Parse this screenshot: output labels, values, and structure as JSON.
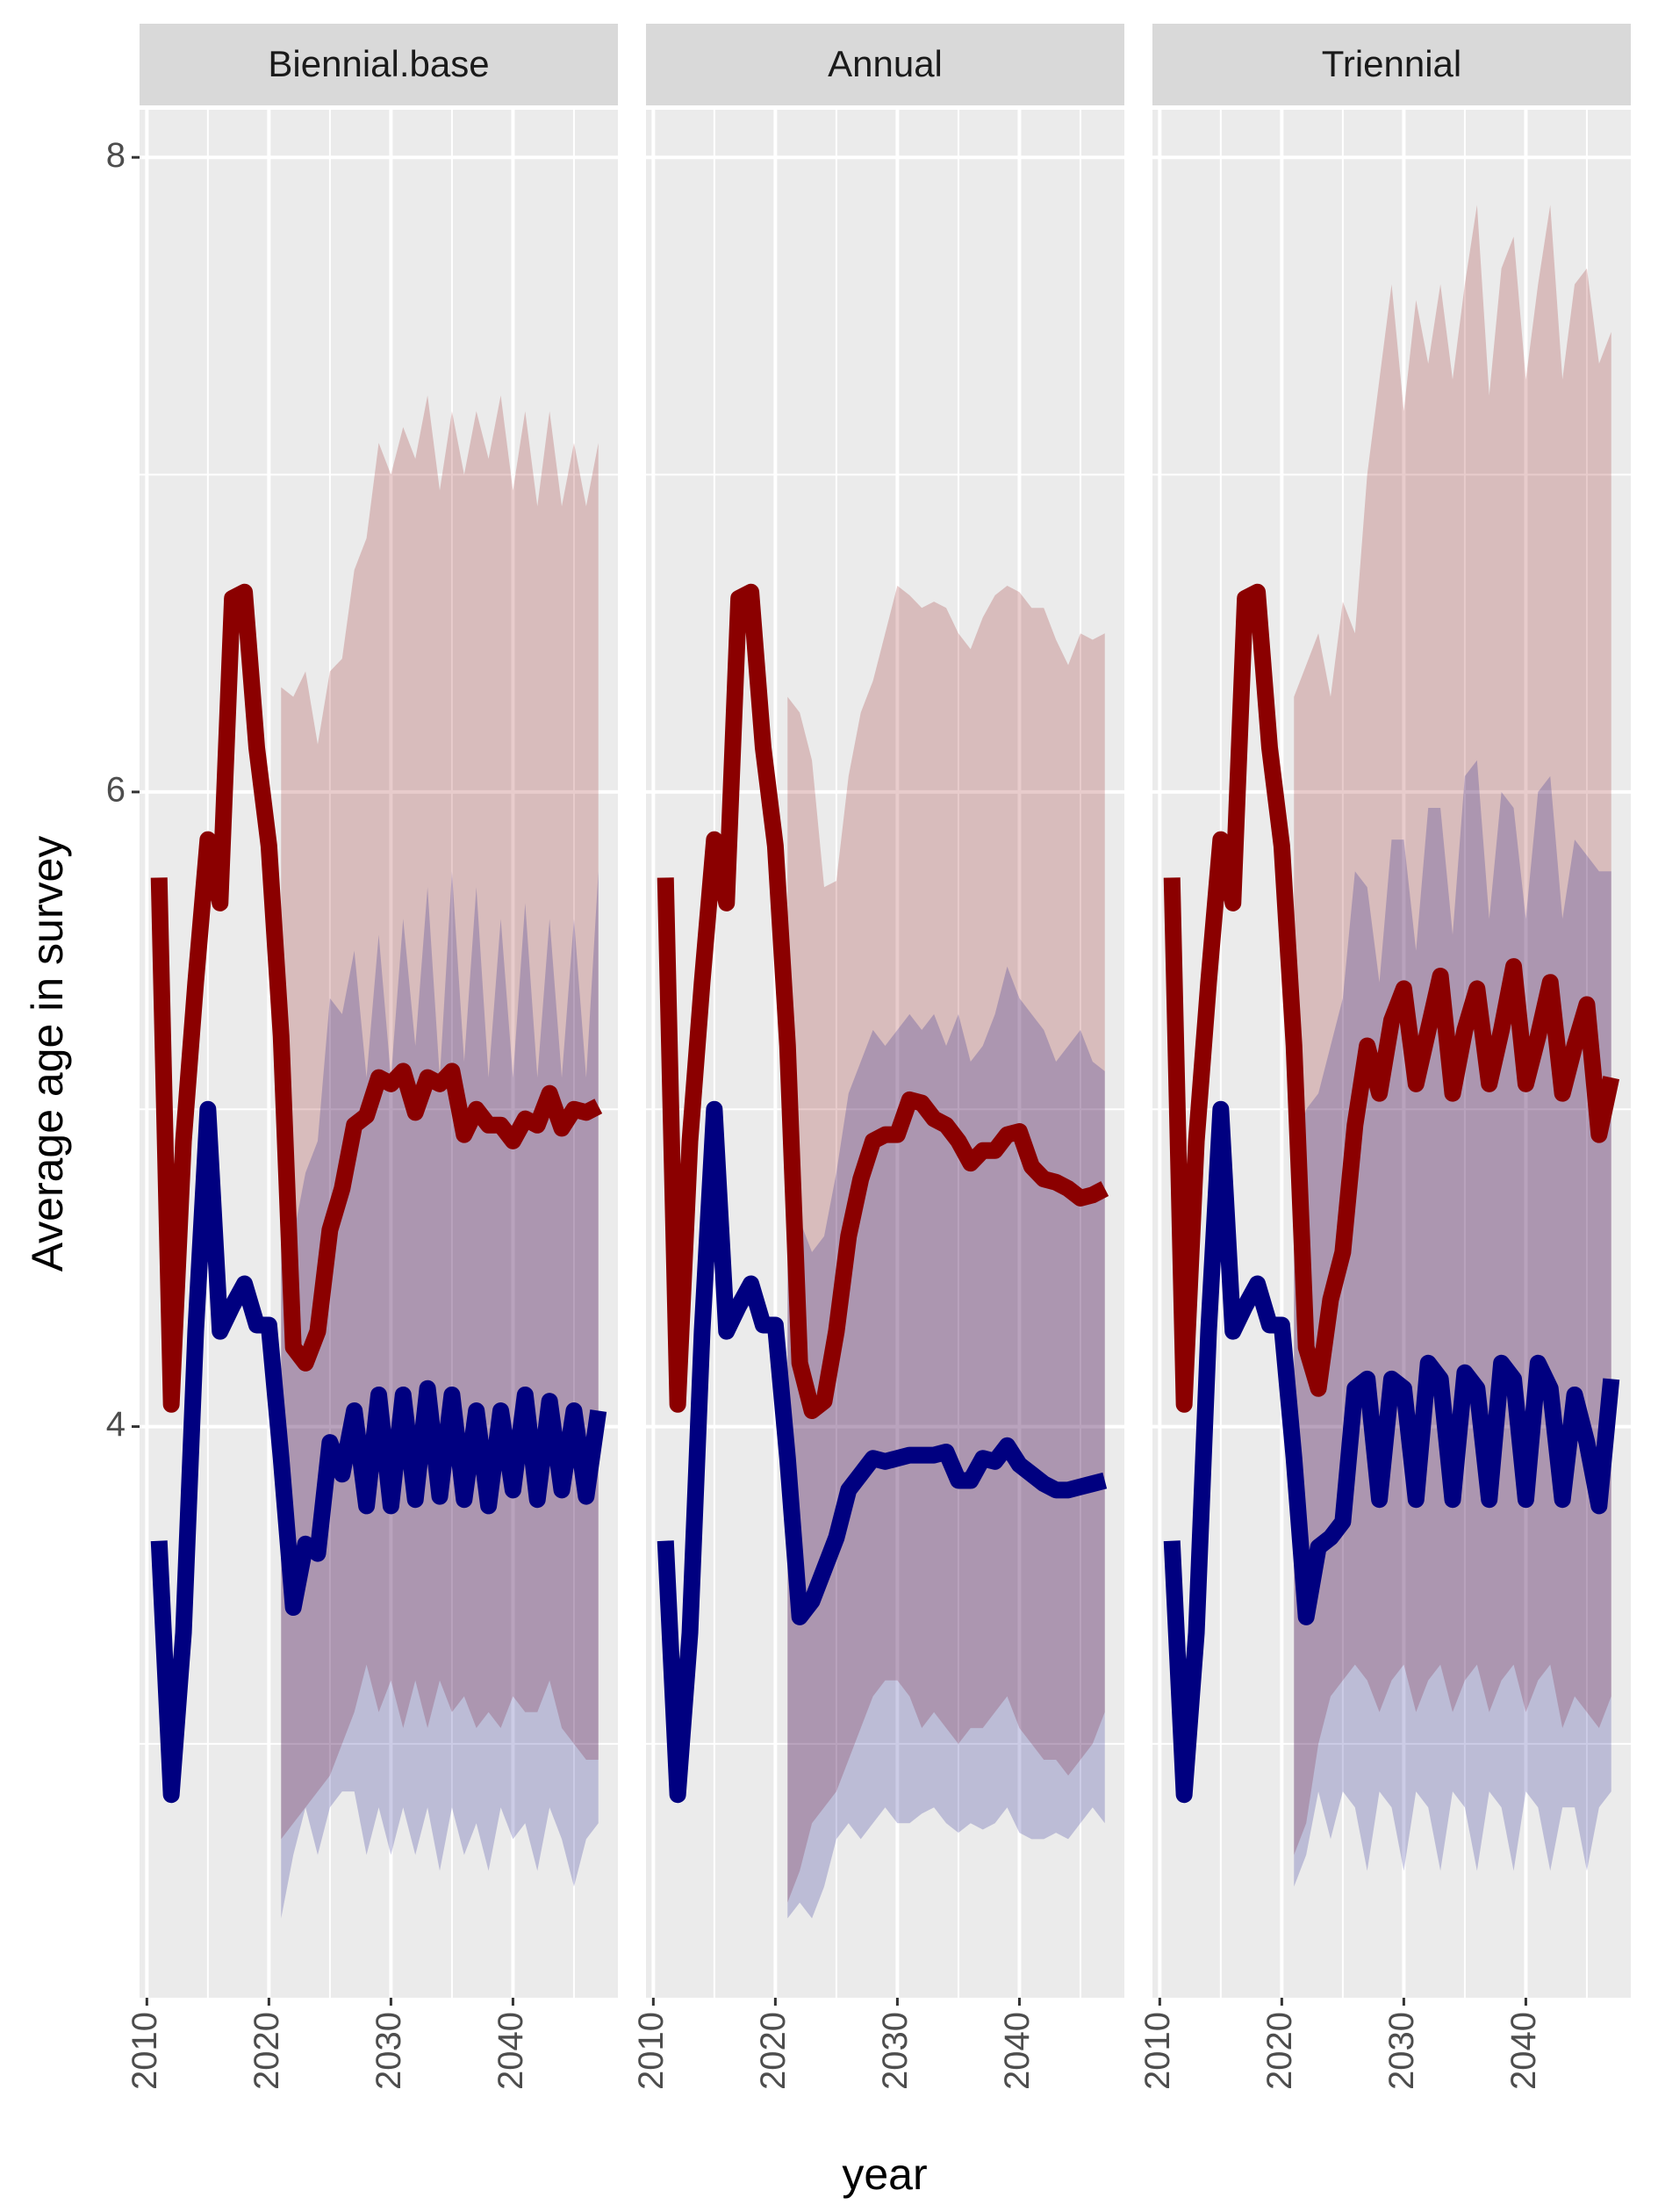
{
  "y_label": "Average age in survey",
  "x_label": "year",
  "chart_data": [
    {
      "type": "line",
      "title": "Biennial.base",
      "x": [
        2011,
        2012,
        2013,
        2014,
        2015,
        2016,
        2017,
        2018,
        2019,
        2020,
        2021,
        2022,
        2023,
        2024,
        2025,
        2026,
        2027,
        2028,
        2029,
        2030,
        2031,
        2032,
        2033,
        2034,
        2035,
        2036,
        2037,
        2038,
        2039,
        2040,
        2041,
        2042,
        2043,
        2044,
        2045,
        2046,
        2047
      ],
      "xlim": [
        2009.4,
        2048.6
      ],
      "xticks": [
        2010,
        2020,
        2030,
        2040
      ],
      "xminor": [
        2015,
        2025,
        2035,
        2045
      ],
      "ylim": [
        2.2,
        8.15
      ],
      "yticks": [
        4,
        6,
        8
      ],
      "yminor": [
        3,
        5,
        7
      ],
      "grid": true,
      "series": [
        {
          "color": "#8b0000",
          "values": [
            5.73,
            4.07,
            4.9,
            5.4,
            5.85,
            5.65,
            6.61,
            6.63,
            6.14,
            5.83,
            5.23,
            4.25,
            4.2,
            4.3,
            4.62,
            4.75,
            4.95,
            4.98,
            5.1,
            5.08,
            5.12,
            4.99,
            5.1,
            5.08,
            5.12,
            4.92,
            5.0,
            4.95,
            4.95,
            4.9,
            4.97,
            4.95,
            5.05,
            4.94,
            5.0,
            4.99,
            5.01
          ],
          "upper": [
            null,
            null,
            null,
            null,
            null,
            null,
            null,
            null,
            null,
            null,
            6.33,
            6.3,
            6.38,
            6.15,
            6.38,
            6.42,
            6.7,
            6.8,
            7.1,
            7.0,
            7.15,
            7.05,
            7.25,
            6.95,
            7.2,
            7.0,
            7.2,
            7.05,
            7.25,
            6.95,
            7.2,
            6.9,
            7.2,
            6.9,
            7.1,
            6.9,
            7.1
          ],
          "lower": [
            null,
            null,
            null,
            null,
            null,
            null,
            null,
            null,
            null,
            null,
            2.7,
            2.75,
            2.8,
            2.85,
            2.9,
            3.0,
            3.1,
            3.25,
            3.1,
            3.2,
            3.05,
            3.2,
            3.05,
            3.2,
            3.1,
            3.15,
            3.05,
            3.1,
            3.05,
            3.15,
            3.1,
            3.1,
            3.2,
            3.05,
            3.0,
            2.95,
            2.95
          ]
        },
        {
          "color": "#000080",
          "values": [
            3.64,
            2.84,
            3.35,
            4.3,
            5.0,
            4.3,
            4.38,
            4.45,
            4.32,
            4.32,
            3.9,
            3.43,
            3.63,
            3.6,
            3.95,
            3.85,
            4.05,
            3.75,
            4.1,
            3.75,
            4.1,
            3.77,
            4.12,
            3.78,
            4.1,
            3.77,
            4.05,
            3.75,
            4.05,
            3.8,
            4.1,
            3.77,
            4.08,
            3.8,
            4.05,
            3.78,
            4.05
          ],
          "upper": [
            null,
            null,
            null,
            null,
            null,
            null,
            null,
            null,
            null,
            null,
            4.7,
            4.6,
            4.8,
            4.9,
            5.35,
            5.3,
            5.5,
            5.1,
            5.55,
            5.1,
            5.6,
            5.2,
            5.7,
            5.1,
            5.75,
            5.15,
            5.7,
            5.1,
            5.6,
            5.1,
            5.65,
            5.1,
            5.6,
            5.1,
            5.6,
            5.1,
            5.75
          ],
          "lower": [
            null,
            null,
            null,
            null,
            null,
            null,
            null,
            null,
            null,
            null,
            2.45,
            2.65,
            2.8,
            2.65,
            2.8,
            2.85,
            2.85,
            2.65,
            2.8,
            2.65,
            2.8,
            2.65,
            2.8,
            2.6,
            2.8,
            2.65,
            2.75,
            2.6,
            2.8,
            2.7,
            2.75,
            2.6,
            2.8,
            2.7,
            2.55,
            2.7,
            2.75
          ]
        }
      ]
    },
    {
      "type": "line",
      "title": "Annual",
      "x": [
        2011,
        2012,
        2013,
        2014,
        2015,
        2016,
        2017,
        2018,
        2019,
        2020,
        2021,
        2022,
        2023,
        2024,
        2025,
        2026,
        2027,
        2028,
        2029,
        2030,
        2031,
        2032,
        2033,
        2034,
        2035,
        2036,
        2037,
        2038,
        2039,
        2040,
        2041,
        2042,
        2043,
        2044,
        2045,
        2046,
        2047
      ],
      "xlim": [
        2009.4,
        2048.6
      ],
      "xticks": [
        2010,
        2020,
        2030,
        2040
      ],
      "xminor": [
        2015,
        2025,
        2035,
        2045
      ],
      "ylim": [
        2.2,
        8.15
      ],
      "yticks": [
        4,
        6,
        8
      ],
      "yminor": [
        3,
        5,
        7
      ],
      "grid": true,
      "series": [
        {
          "color": "#8b0000",
          "values": [
            5.73,
            4.07,
            4.9,
            5.4,
            5.85,
            5.65,
            6.61,
            6.63,
            6.14,
            5.83,
            5.2,
            4.2,
            4.05,
            4.08,
            4.3,
            4.6,
            4.78,
            4.9,
            4.92,
            4.92,
            5.03,
            5.02,
            4.97,
            4.95,
            4.9,
            4.83,
            4.87,
            4.87,
            4.92,
            4.93,
            4.82,
            4.78,
            4.77,
            4.75,
            4.72,
            4.73,
            4.75
          ],
          "upper": [
            null,
            null,
            null,
            null,
            null,
            null,
            null,
            null,
            null,
            null,
            6.3,
            6.25,
            6.1,
            5.7,
            5.72,
            6.05,
            6.25,
            6.35,
            6.5,
            6.65,
            6.62,
            6.58,
            6.6,
            6.58,
            6.5,
            6.45,
            6.55,
            6.62,
            6.65,
            6.63,
            6.58,
            6.58,
            6.48,
            6.4,
            6.5,
            6.48,
            6.5
          ],
          "lower": [
            null,
            null,
            null,
            null,
            null,
            null,
            null,
            null,
            null,
            null,
            2.5,
            2.6,
            2.75,
            2.8,
            2.85,
            2.95,
            3.05,
            3.15,
            3.2,
            3.2,
            3.15,
            3.05,
            3.1,
            3.05,
            3.0,
            3.05,
            3.05,
            3.1,
            3.15,
            3.05,
            3.0,
            2.95,
            2.95,
            2.9,
            2.95,
            3.0,
            3.1
          ]
        },
        {
          "color": "#000080",
          "values": [
            3.64,
            2.84,
            3.35,
            4.3,
            5.0,
            4.3,
            4.38,
            4.45,
            4.32,
            4.32,
            3.9,
            3.4,
            3.45,
            3.55,
            3.65,
            3.8,
            3.85,
            3.9,
            3.89,
            3.9,
            3.91,
            3.91,
            3.91,
            3.92,
            3.83,
            3.83,
            3.9,
            3.89,
            3.94,
            3.88,
            3.85,
            3.82,
            3.8,
            3.8,
            3.81,
            3.82,
            3.83
          ],
          "upper": [
            null,
            null,
            null,
            null,
            null,
            null,
            null,
            null,
            null,
            null,
            4.7,
            4.65,
            4.55,
            4.6,
            4.8,
            5.05,
            5.15,
            5.25,
            5.2,
            5.25,
            5.3,
            5.25,
            5.3,
            5.2,
            5.3,
            5.15,
            5.2,
            5.3,
            5.45,
            5.35,
            5.3,
            5.25,
            5.15,
            5.2,
            5.25,
            5.15,
            5.12
          ],
          "lower": [
            null,
            null,
            null,
            null,
            null,
            null,
            null,
            null,
            null,
            null,
            2.45,
            2.5,
            2.45,
            2.55,
            2.7,
            2.75,
            2.7,
            2.75,
            2.8,
            2.75,
            2.75,
            2.78,
            2.8,
            2.75,
            2.72,
            2.75,
            2.73,
            2.75,
            2.8,
            2.72,
            2.7,
            2.7,
            2.72,
            2.7,
            2.75,
            2.8,
            2.75
          ]
        }
      ]
    },
    {
      "type": "line",
      "title": "Triennial",
      "x": [
        2011,
        2012,
        2013,
        2014,
        2015,
        2016,
        2017,
        2018,
        2019,
        2020,
        2021,
        2022,
        2023,
        2024,
        2025,
        2026,
        2027,
        2028,
        2029,
        2030,
        2031,
        2032,
        2033,
        2034,
        2035,
        2036,
        2037,
        2038,
        2039,
        2040,
        2041,
        2042,
        2043,
        2044,
        2045,
        2046,
        2047
      ],
      "xlim": [
        2009.4,
        2048.6
      ],
      "xticks": [
        2010,
        2020,
        2030,
        2040
      ],
      "xminor": [
        2015,
        2025,
        2035,
        2045
      ],
      "ylim": [
        2.2,
        8.15
      ],
      "yticks": [
        4,
        6,
        8
      ],
      "yminor": [
        3,
        5,
        7
      ],
      "grid": true,
      "series": [
        {
          "color": "#8b0000",
          "values": [
            5.73,
            4.07,
            4.9,
            5.4,
            5.85,
            5.65,
            6.61,
            6.63,
            6.14,
            5.83,
            5.2,
            4.25,
            4.12,
            4.4,
            4.55,
            4.95,
            5.2,
            5.05,
            5.28,
            5.38,
            5.08,
            5.25,
            5.42,
            5.05,
            5.25,
            5.38,
            5.08,
            5.25,
            5.45,
            5.08,
            5.23,
            5.4,
            5.05,
            5.2,
            5.33,
            4.92,
            5.1
          ],
          "upper": [
            null,
            null,
            null,
            null,
            null,
            null,
            null,
            null,
            null,
            null,
            6.3,
            6.4,
            6.5,
            6.3,
            6.6,
            6.5,
            7.0,
            7.3,
            7.6,
            7.2,
            7.55,
            7.35,
            7.6,
            7.3,
            7.6,
            7.85,
            7.25,
            7.65,
            7.75,
            7.3,
            7.6,
            7.85,
            7.3,
            7.6,
            7.65,
            7.35,
            7.45
          ],
          "lower": [
            null,
            null,
            null,
            null,
            null,
            null,
            null,
            null,
            null,
            null,
            2.65,
            2.75,
            3.0,
            3.15,
            3.2,
            3.25,
            3.2,
            3.1,
            3.2,
            3.25,
            3.1,
            3.2,
            3.25,
            3.1,
            3.2,
            3.25,
            3.1,
            3.2,
            3.25,
            3.1,
            3.2,
            3.25,
            3.05,
            3.15,
            3.1,
            3.05,
            3.15
          ]
        },
        {
          "color": "#000080",
          "values": [
            3.64,
            2.84,
            3.35,
            4.3,
            5.0,
            4.3,
            4.38,
            4.45,
            4.32,
            4.32,
            3.9,
            3.4,
            3.62,
            3.65,
            3.7,
            4.12,
            4.15,
            3.77,
            4.15,
            4.12,
            3.77,
            4.2,
            4.15,
            3.77,
            4.17,
            4.12,
            3.77,
            4.2,
            4.15,
            3.77,
            4.2,
            4.12,
            3.77,
            4.1,
            3.95,
            3.75,
            4.15
          ],
          "upper": [
            null,
            null,
            null,
            null,
            null,
            null,
            null,
            null,
            null,
            null,
            4.85,
            5.0,
            5.05,
            5.2,
            5.35,
            5.75,
            5.7,
            5.4,
            5.85,
            5.85,
            5.5,
            5.95,
            5.95,
            5.55,
            6.05,
            6.1,
            5.6,
            6.0,
            5.95,
            5.6,
            6.0,
            6.05,
            5.6,
            5.85,
            5.8,
            5.75,
            5.75
          ],
          "lower": [
            null,
            null,
            null,
            null,
            null,
            null,
            null,
            null,
            null,
            null,
            2.55,
            2.65,
            2.85,
            2.7,
            2.85,
            2.8,
            2.6,
            2.85,
            2.8,
            2.6,
            2.85,
            2.8,
            2.6,
            2.85,
            2.8,
            2.6,
            2.85,
            2.8,
            2.6,
            2.85,
            2.8,
            2.6,
            2.8,
            2.8,
            2.6,
            2.8,
            2.85
          ]
        }
      ]
    }
  ]
}
